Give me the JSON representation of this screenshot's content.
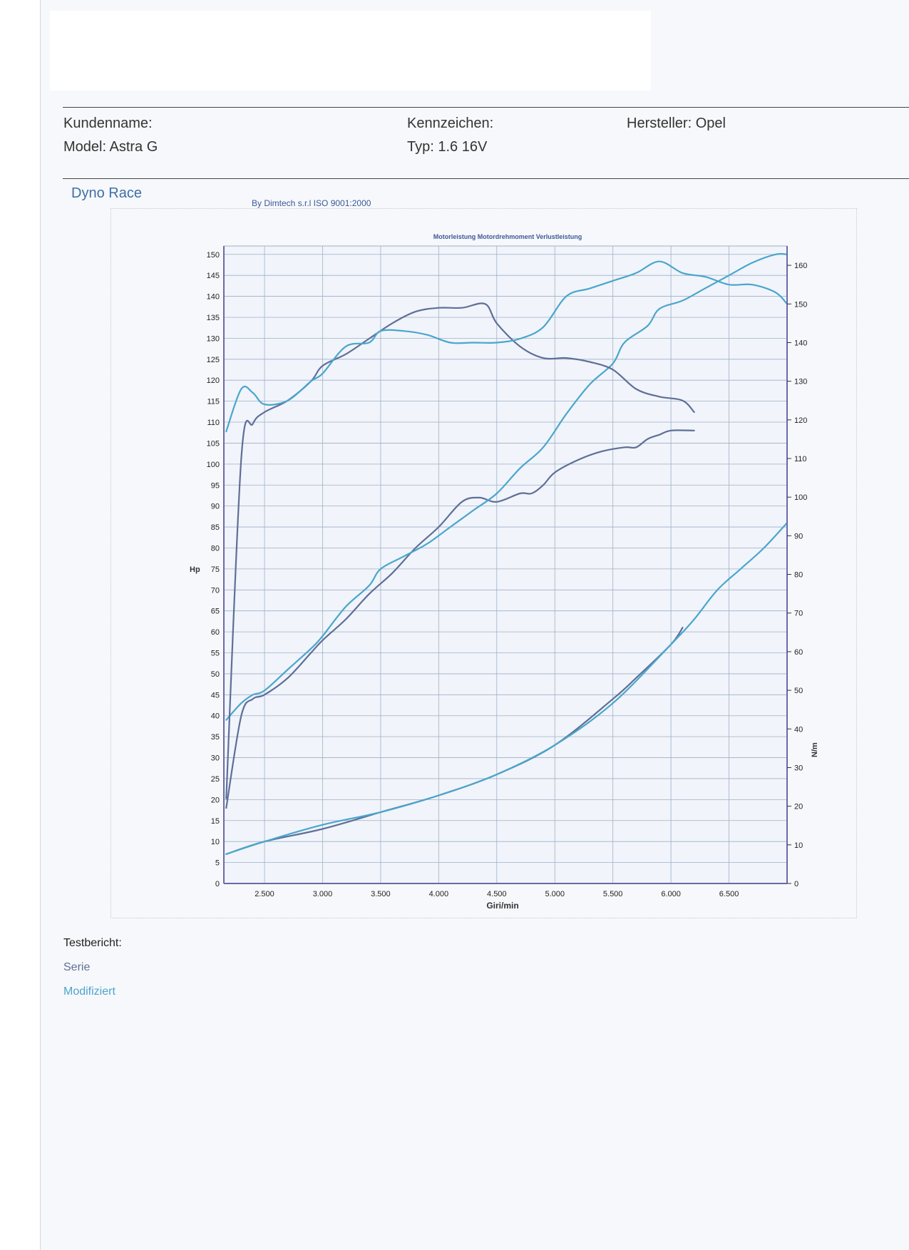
{
  "header": {
    "customer_label": "Kundenname:",
    "model_label": "Model: Astra G",
    "plate_label": "Kennzeichen:",
    "type_label": "Typ: 1.6 16V",
    "manufacturer_label": "Hersteller: Opel"
  },
  "brand": "Dyno Race",
  "byline": "By Dimtech s.r.l  ISO 9001:2000",
  "report": {
    "title": "Testbericht:",
    "legend": [
      {
        "label": "Serie",
        "color": "#5e6f98"
      },
      {
        "label": "Modifiziert",
        "color": "#4aa6cc"
      }
    ]
  },
  "chart_data": {
    "type": "line",
    "title": "Motorleistung Motordrehmoment Verlustleistung",
    "xlabel": "Giri/min",
    "ylabel": "Hp",
    "y2label": "N/m",
    "xlim": [
      2150,
      7000
    ],
    "ylim": [
      0,
      152
    ],
    "y2lim": [
      0,
      165
    ],
    "x_ticks": [
      2500,
      3000,
      3500,
      4000,
      4500,
      5000,
      5500,
      6000,
      6500
    ],
    "x_tick_labels": [
      "2.500",
      "3.000",
      "3.500",
      "4.000",
      "4.500",
      "5.000",
      "5.500",
      "6.000",
      "6.500"
    ],
    "y_ticks": [
      0,
      5,
      10,
      15,
      20,
      25,
      30,
      35,
      40,
      45,
      50,
      55,
      60,
      65,
      70,
      75,
      80,
      85,
      90,
      95,
      100,
      105,
      110,
      115,
      120,
      125,
      130,
      135,
      140,
      145,
      150
    ],
    "y2_ticks": [
      0,
      10,
      20,
      30,
      40,
      50,
      60,
      70,
      80,
      90,
      100,
      110,
      120,
      130,
      140,
      150,
      160
    ],
    "series": [
      {
        "name": "Serie",
        "axis": "left",
        "color": "#5e6f98",
        "x": [
          2170,
          2300,
          2400,
          2500,
          2700,
          2900,
          3000,
          3200,
          3400,
          3600,
          3800,
          4000,
          4200,
          4350,
          4500,
          4700,
          4800,
          4900,
          5000,
          5200,
          5400,
          5600,
          5700,
          5800,
          5900,
          6000,
          6200
        ],
        "y": [
          18,
          40,
          44,
          45,
          49,
          55,
          58,
          63,
          69,
          74,
          80,
          85,
          91,
          92,
          91,
          93,
          93,
          95,
          98,
          101,
          103,
          104,
          104,
          106,
          107,
          108,
          108
        ]
      },
      {
        "name": "Modifiziert",
        "axis": "left",
        "color": "#4aa6cc",
        "x": [
          2170,
          2300,
          2400,
          2500,
          2700,
          2900,
          3000,
          3200,
          3400,
          3500,
          3700,
          3900,
          4100,
          4300,
          4500,
          4700,
          4900,
          5100,
          5300,
          5500,
          5600,
          5800,
          5900,
          6100,
          6300,
          6500,
          6700,
          6900,
          7000
        ],
        "y": [
          39,
          43,
          45,
          46,
          51,
          56,
          59,
          66,
          71,
          75,
          78,
          81,
          85,
          89,
          93,
          99,
          104,
          112,
          119,
          124,
          129,
          133,
          137,
          139,
          142,
          145,
          148,
          150,
          150
        ]
      },
      {
        "name": "Serie",
        "axis": "right",
        "color": "#5e6f98",
        "x": [
          2170,
          2300,
          2400,
          2500,
          2700,
          2900,
          3000,
          3200,
          3400,
          3600,
          3800,
          4000,
          4200,
          4400,
          4500,
          4700,
          4900,
          5100,
          5300,
          5500,
          5700,
          5900,
          6100,
          6200
        ],
        "y": [
          22,
          110,
          119,
          122,
          125,
          130,
          134,
          137,
          141,
          145,
          148,
          149,
          149,
          150,
          145,
          139,
          136,
          136,
          135,
          133,
          128,
          126,
          125,
          122
        ]
      },
      {
        "name": "Modifiziert",
        "axis": "right",
        "color": "#4aa6cc",
        "x": [
          2170,
          2300,
          2400,
          2500,
          2700,
          2900,
          3000,
          3200,
          3400,
          3500,
          3700,
          3900,
          4100,
          4300,
          4500,
          4700,
          4900,
          5100,
          5300,
          5500,
          5700,
          5900,
          6100,
          6300,
          6500,
          6700,
          6900,
          7000
        ],
        "y": [
          117,
          128,
          127,
          124,
          125,
          130,
          132,
          139,
          140,
          143,
          143,
          142,
          140,
          140,
          140,
          141,
          144,
          152,
          154,
          156,
          158,
          161,
          158,
          157,
          155,
          155,
          153,
          150
        ]
      },
      {
        "name": "Serie",
        "axis": "left",
        "color": "#5e6f98",
        "x": [
          2170,
          2500,
          3000,
          3500,
          4000,
          4500,
          5000,
          5500,
          5700,
          6000,
          6100
        ],
        "y": [
          7,
          10,
          13,
          17,
          21,
          26,
          33,
          44,
          49,
          57,
          61
        ]
      },
      {
        "name": "Modifiziert",
        "axis": "left",
        "color": "#4aa6cc",
        "x": [
          2170,
          2500,
          3000,
          3500,
          4000,
          4500,
          5000,
          5500,
          6000,
          6200,
          6400,
          6600,
          6800,
          7000
        ],
        "y": [
          7,
          10,
          14,
          17,
          21,
          26,
          33,
          43,
          57,
          63,
          70,
          75,
          80,
          86
        ]
      }
    ]
  }
}
